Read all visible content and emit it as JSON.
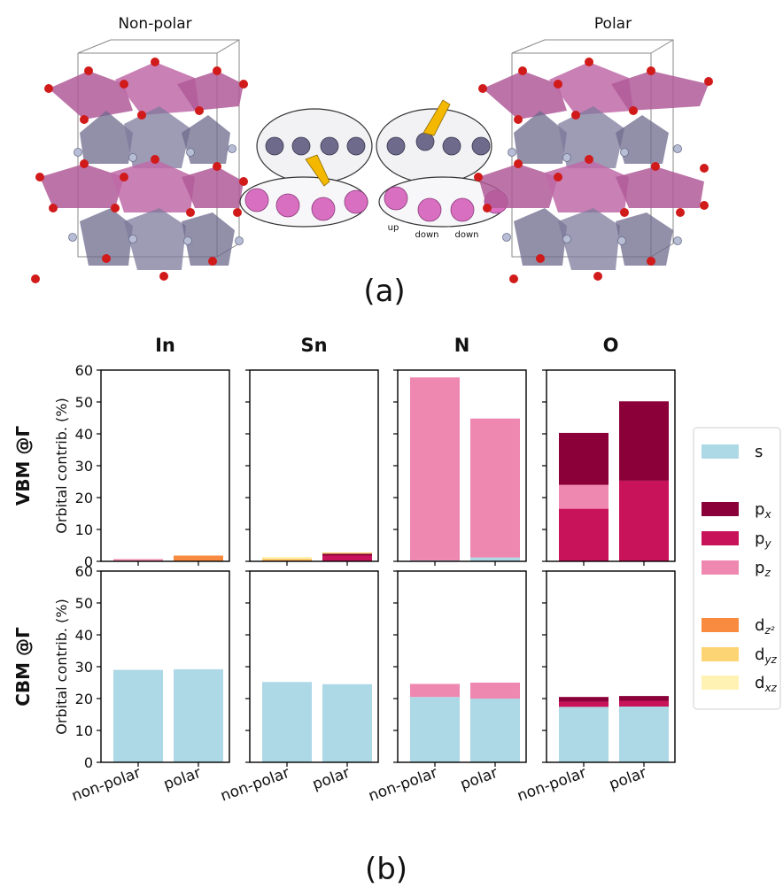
{
  "panel_a": {
    "left_title": "Non-polar",
    "right_title": "Polar",
    "caption": "(a)",
    "atom_labels": [
      "up",
      "down",
      "down"
    ]
  },
  "panel_b": {
    "caption": "(b)"
  },
  "colors": {
    "s": "#add8e6",
    "px": "#8b0039",
    "py": "#c8125a",
    "pz": "#ee88b0",
    "dz2": "#f98b40",
    "dyz": "#fcd473",
    "dxz": "#fff2b3",
    "pink_octa": "#b05a98",
    "grey_octa": "#6e6a8c",
    "oxygen": "#d11a1a",
    "nitrogen": "#b8bdd6"
  },
  "chart_data": {
    "type": "bar",
    "stacked": true,
    "columns": [
      "In",
      "Sn",
      "N",
      "O"
    ],
    "rows": [
      "VBM @Γ",
      "CBM @Γ"
    ],
    "categories": [
      "non-polar",
      "polar"
    ],
    "ylabel": "Orbital contrib. (%)",
    "ylim": [
      0,
      60
    ],
    "yticks": [
      0,
      10,
      20,
      30,
      40,
      50,
      60
    ],
    "legend_position": "right",
    "legend": [
      {
        "key": "s",
        "label": "s",
        "sub": ""
      },
      {
        "key": "px",
        "label": "p",
        "sub": "x"
      },
      {
        "key": "py",
        "label": "p",
        "sub": "y"
      },
      {
        "key": "pz",
        "label": "p",
        "sub": "z"
      },
      {
        "key": "dz2",
        "label": "d",
        "sub": "z²"
      },
      {
        "key": "dyz",
        "label": "d",
        "sub": "yz"
      },
      {
        "key": "dxz",
        "label": "d",
        "sub": "xz"
      }
    ],
    "panels": [
      {
        "row": "VBM @Γ",
        "column": "In",
        "bars": [
          [
            {
              "orbital": "pz",
              "value": 0.7
            }
          ],
          [
            {
              "orbital": "dz2",
              "value": 1.8
            }
          ]
        ]
      },
      {
        "row": "VBM @Γ",
        "column": "Sn",
        "bars": [
          [
            {
              "orbital": "dz2",
              "value": 0.4
            },
            {
              "orbital": "dyz",
              "value": 0.5
            },
            {
              "orbital": "dxz",
              "value": 0.5
            }
          ],
          [
            {
              "orbital": "py",
              "value": 1.8
            },
            {
              "orbital": "px",
              "value": 0.6
            },
            {
              "orbital": "dyz",
              "value": 0.4
            }
          ]
        ]
      },
      {
        "row": "VBM @Γ",
        "column": "N",
        "bars": [
          [
            {
              "orbital": "s",
              "value": 0.3
            },
            {
              "orbital": "pz",
              "value": 57.4
            }
          ],
          [
            {
              "orbital": "s",
              "value": 1.2
            },
            {
              "orbital": "pz",
              "value": 43.6
            }
          ]
        ]
      },
      {
        "row": "VBM @Γ",
        "column": "O",
        "bars": [
          [
            {
              "orbital": "py",
              "value": 16.5
            },
            {
              "orbital": "pz",
              "value": 7.5
            },
            {
              "orbital": "px",
              "value": 16.3
            }
          ],
          [
            {
              "orbital": "py",
              "value": 25.3
            },
            {
              "orbital": "px",
              "value": 24.9
            }
          ]
        ]
      },
      {
        "row": "CBM @Γ",
        "column": "In",
        "bars": [
          [
            {
              "orbital": "s",
              "value": 29.0
            }
          ],
          [
            {
              "orbital": "s",
              "value": 29.2
            }
          ]
        ]
      },
      {
        "row": "CBM @Γ",
        "column": "Sn",
        "bars": [
          [
            {
              "orbital": "s",
              "value": 25.2
            }
          ],
          [
            {
              "orbital": "s",
              "value": 24.5
            }
          ]
        ]
      },
      {
        "row": "CBM @Γ",
        "column": "N",
        "bars": [
          [
            {
              "orbital": "s",
              "value": 20.5
            },
            {
              "orbital": "pz",
              "value": 4.1
            }
          ],
          [
            {
              "orbital": "s",
              "value": 20.0
            },
            {
              "orbital": "pz",
              "value": 5.0
            }
          ]
        ]
      },
      {
        "row": "CBM @Γ",
        "column": "O",
        "bars": [
          [
            {
              "orbital": "s",
              "value": 17.4
            },
            {
              "orbital": "py",
              "value": 1.6
            },
            {
              "orbital": "px",
              "value": 1.5
            }
          ],
          [
            {
              "orbital": "s",
              "value": 17.5
            },
            {
              "orbital": "py",
              "value": 1.8
            },
            {
              "orbital": "px",
              "value": 1.5
            }
          ]
        ]
      }
    ]
  }
}
